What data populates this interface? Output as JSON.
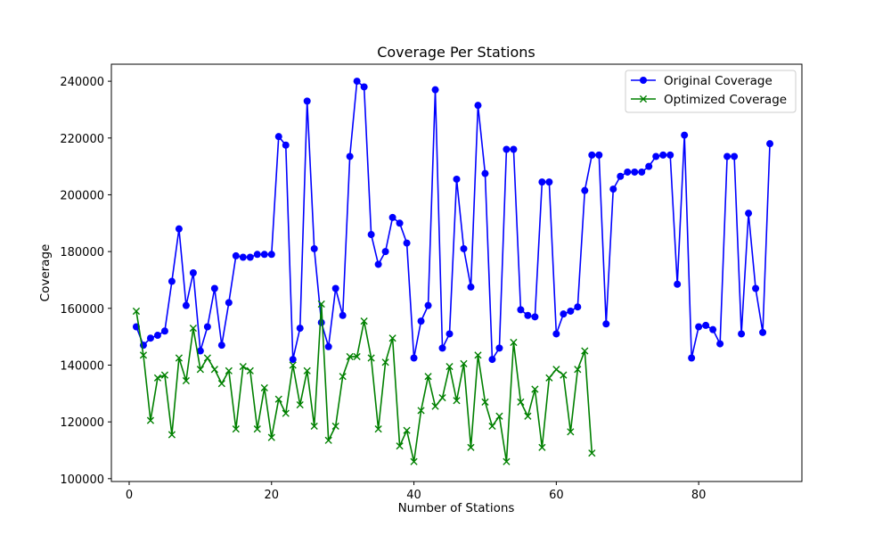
{
  "chart_data": {
    "type": "line",
    "title": "Coverage Per Stations",
    "xlabel": "Number of Stations",
    "ylabel": "Coverage",
    "xlim": [
      -2.5,
      94.5
    ],
    "ylim": [
      99000,
      246000
    ],
    "xticks": [
      0,
      20,
      40,
      60,
      80
    ],
    "yticks": [
      100000,
      120000,
      140000,
      160000,
      180000,
      200000,
      220000,
      240000
    ],
    "grid": false,
    "legend": "top-right",
    "series": [
      {
        "name": "Original Coverage",
        "color": "#0000ff",
        "marker": "circle",
        "x": [
          1,
          2,
          3,
          4,
          5,
          6,
          7,
          8,
          9,
          10,
          11,
          12,
          13,
          14,
          15,
          16,
          17,
          18,
          19,
          20,
          21,
          22,
          23,
          24,
          25,
          26,
          27,
          28,
          29,
          30,
          31,
          32,
          33,
          34,
          35,
          36,
          37,
          38,
          39,
          40,
          41,
          42,
          43,
          44,
          45,
          46,
          47,
          48,
          49,
          50,
          51,
          52,
          53,
          54,
          55,
          56,
          57,
          58,
          59,
          60,
          61,
          62,
          63,
          64,
          65,
          66,
          67,
          68,
          69,
          70,
          71,
          72,
          73,
          74,
          75,
          76,
          77,
          78,
          79,
          80,
          81,
          82,
          83,
          84,
          85,
          86,
          87,
          88,
          89,
          90
        ],
        "values": [
          153500,
          147000,
          149500,
          150500,
          152000,
          169500,
          188000,
          161000,
          172500,
          145000,
          153500,
          167000,
          147000,
          162000,
          178500,
          178000,
          178000,
          179000,
          179000,
          179000,
          220500,
          217500,
          142000,
          153000,
          233000,
          181000,
          155000,
          146500,
          167000,
          157500,
          213500,
          240000,
          238000,
          186000,
          175500,
          180000,
          192000,
          190000,
          183000,
          142500,
          155500,
          161000,
          237000,
          146000,
          151000,
          205500,
          181000,
          167500,
          231500,
          207500,
          142000,
          146000,
          216000,
          216000,
          159500,
          157500,
          157000,
          204500,
          204500,
          151000,
          158000,
          159000,
          160500,
          201500,
          214000,
          214000,
          154500,
          202000,
          206500,
          208000,
          208000,
          208000,
          210000,
          213500,
          214000,
          214000,
          168500,
          221000,
          142500,
          153500,
          154000,
          152500,
          147500,
          213500,
          213500,
          151000,
          193500,
          167000,
          151500,
          218000
        ]
      },
      {
        "name": "Optimized Coverage",
        "color": "#008000",
        "marker": "x",
        "x": [
          1,
          2,
          3,
          4,
          5,
          6,
          7,
          8,
          9,
          10,
          11,
          12,
          13,
          14,
          15,
          16,
          17,
          18,
          19,
          20,
          21,
          22,
          23,
          24,
          25,
          26,
          27,
          28,
          29,
          30,
          31,
          32,
          33,
          34,
          35,
          36,
          37,
          38,
          39,
          40,
          41,
          42,
          43,
          44,
          45,
          46,
          47,
          48,
          49,
          50,
          51,
          52,
          53,
          54,
          55,
          56,
          57,
          58,
          59,
          60,
          61,
          62,
          63,
          64,
          65
        ],
        "values": [
          159000,
          143500,
          120500,
          135500,
          136500,
          115500,
          142500,
          134500,
          153000,
          138500,
          142500,
          138500,
          133500,
          138000,
          117500,
          139500,
          138000,
          117500,
          132000,
          114500,
          128000,
          123000,
          140000,
          126000,
          138000,
          118500,
          161500,
          113500,
          118500,
          136000,
          143000,
          143000,
          155500,
          142500,
          117500,
          141000,
          149500,
          111500,
          117000,
          106000,
          124000,
          136000,
          125500,
          128500,
          139500,
          127500,
          140500,
          111000,
          143500,
          127000,
          118500,
          122000,
          106000,
          148000,
          127000,
          122000,
          131500,
          111000,
          135500,
          138500,
          136500,
          116500,
          138500,
          145000,
          109000
        ]
      }
    ]
  }
}
